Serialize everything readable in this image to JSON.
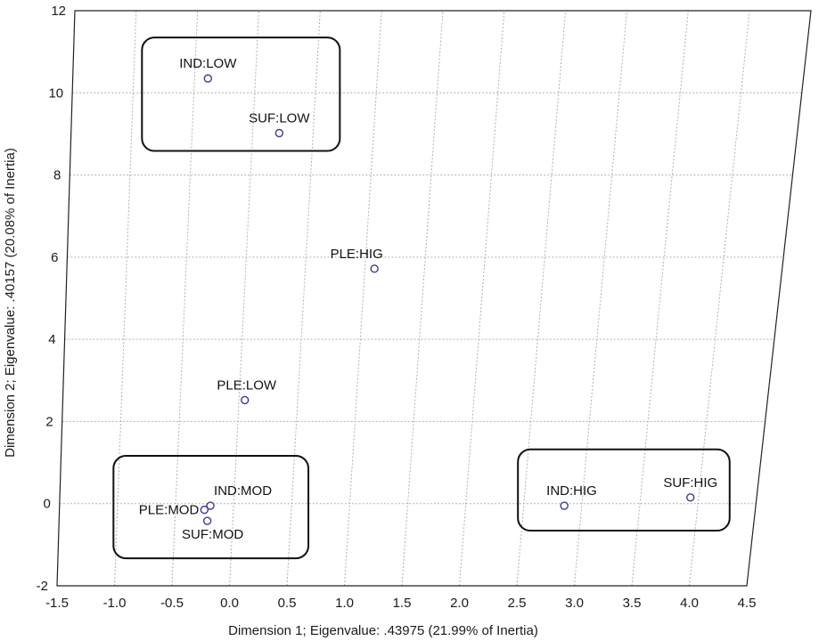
{
  "chart_data": {
    "type": "scatter",
    "title": "",
    "xlabel": "Dimension 1; Eigenvalue: .43975 (21.99% of Inertia)",
    "ylabel": "Dimension 2; Eigenvalue: .40157 (20.08% of Inertia)",
    "xlim": [
      -1.5,
      4.5
    ],
    "ylim": [
      -2,
      12
    ],
    "x_ticks": [
      "-1.5",
      "-1.0",
      "-0.5",
      "0.0",
      "0.5",
      "1.0",
      "1.5",
      "2.0",
      "2.5",
      "3.0",
      "3.5",
      "4.0",
      "4.5"
    ],
    "y_ticks": [
      "-2",
      "0",
      "2",
      "4",
      "6",
      "8",
      "10",
      "12"
    ],
    "grid": true,
    "points": [
      {
        "label": "IND:LOW",
        "x": -0.39,
        "y": 10.35
      },
      {
        "label": "SUF:LOW",
        "x": 0.22,
        "y": 9.02
      },
      {
        "label": "PLE:HIG",
        "x": 1.08,
        "y": 5.72
      },
      {
        "label": "PLE:LOW",
        "x": 0.05,
        "y": 2.52
      },
      {
        "label": "IND:MOD",
        "x": -0.2,
        "y": -0.05
      },
      {
        "label": "PLE:MOD",
        "x": -0.25,
        "y": -0.15
      },
      {
        "label": "SUF:MOD",
        "x": -0.22,
        "y": -0.42
      },
      {
        "label": "IND:HIG",
        "x": 2.85,
        "y": -0.05
      },
      {
        "label": "SUF:HIG",
        "x": 3.93,
        "y": 0.15
      }
    ],
    "groups": [
      {
        "members": [
          "IND:LOW",
          "SUF:LOW"
        ]
      },
      {
        "members": [
          "IND:MOD",
          "PLE:MOD",
          "SUF:MOD"
        ]
      },
      {
        "members": [
          "IND:HIG",
          "SUF:HIG"
        ]
      }
    ]
  }
}
